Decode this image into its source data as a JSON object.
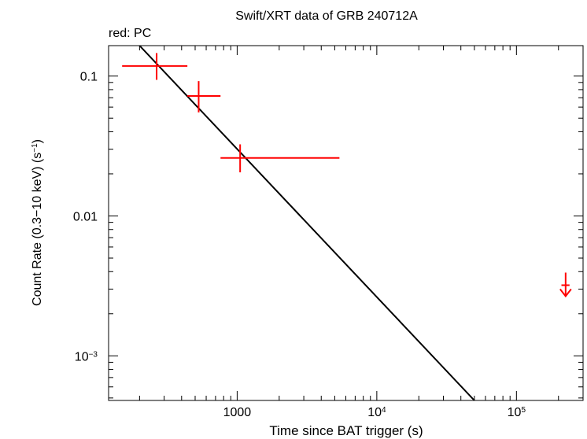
{
  "chart_data": {
    "type": "scatter",
    "title": "Swift/XRT data of GRB 240712A",
    "subtitle": "red: PC",
    "xlabel": "Time since BAT trigger (s)",
    "ylabel": "Count Rate (0.3−10 keV) (s",
    "ylabel_sup": "−1",
    "ylabel_end": ")",
    "xscale": "log",
    "yscale": "log",
    "xlim": [
      120,
      300000
    ],
    "ylim": [
      0.00048,
      0.165
    ],
    "xticks": [
      {
        "value": 1000,
        "base": "1000",
        "sup": ""
      },
      {
        "value": 10000,
        "base": "10",
        "sup": "4"
      },
      {
        "value": 100000,
        "base": "10",
        "sup": "5"
      }
    ],
    "yticks": [
      {
        "value": 0.1,
        "base": "0.1",
        "sup": ""
      },
      {
        "value": 0.01,
        "base": "0.01",
        "sup": ""
      },
      {
        "value": 0.001,
        "base": "10",
        "sup": "−3"
      }
    ],
    "colors": {
      "data": "#ff0000",
      "model": "#000000",
      "axes": "#000000"
    },
    "series": [
      {
        "mode": "PC",
        "color": "#ff0000",
        "points": [
          {
            "x": 265,
            "x_lo": 150,
            "x_hi": 440,
            "y": 0.118,
            "y_lo": 0.094,
            "y_hi": 0.146
          },
          {
            "x": 530,
            "x_lo": 440,
            "x_hi": 760,
            "y": 0.072,
            "y_lo": 0.055,
            "y_hi": 0.092
          },
          {
            "x": 1050,
            "x_lo": 760,
            "x_hi": 5400,
            "y": 0.026,
            "y_lo": 0.0205,
            "y_hi": 0.0325
          }
        ],
        "upper_limits": [
          {
            "x": 225000,
            "x_lo": 210000,
            "x_hi": 240000,
            "y": 0.0032
          }
        ]
      }
    ],
    "model": {
      "type": "power-law",
      "points": [
        [
          200,
          0.165
        ],
        [
          50000,
          0.00048
        ]
      ]
    }
  }
}
